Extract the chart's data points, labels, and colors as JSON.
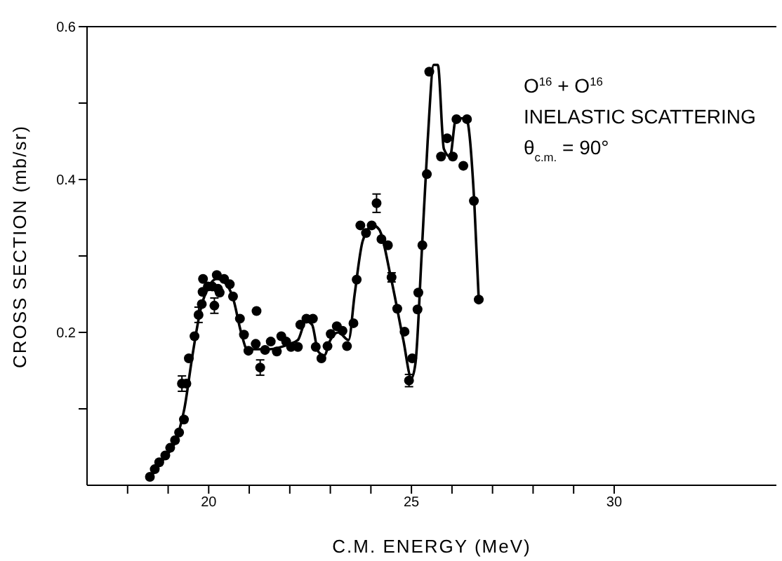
{
  "chart_data": {
    "type": "scatter",
    "xlabel": "C.M.  ENERGY   (MeV)",
    "ylabel": "CROSS  SECTION  (mb/sr)",
    "annotations": [
      "O$^{16}$ + O$^{16}$",
      "INELASTIC  SCATTERING",
      "θ$_{c.m.}$ = 90°"
    ],
    "xlim": [
      17,
      34
    ],
    "xticks": [
      {
        "value": 18,
        "label": null
      },
      {
        "value": 19,
        "label": null
      },
      20,
      {
        "value": 21,
        "label": null
      },
      {
        "value": 22,
        "label": null
      },
      {
        "value": 23,
        "label": null
      },
      {
        "value": 24,
        "label": null
      },
      25,
      {
        "value": 26,
        "label": null
      },
      {
        "value": 27,
        "label": null
      },
      {
        "value": 28,
        "label": null
      },
      {
        "value": 29,
        "label": null
      },
      30
    ],
    "ylim": [
      0,
      0.6
    ],
    "yticks": [
      {
        "value": 0.1,
        "label": null
      },
      0.2,
      {
        "value": 0.3,
        "label": null
      },
      0.4,
      {
        "value": 0.5,
        "label": null
      },
      0.6
    ],
    "marker": "circle",
    "series": [
      {
        "color": "#000000",
        "x": [
          18.55,
          18.67,
          18.78,
          18.93,
          19.05,
          19.17,
          19.27,
          19.39,
          19.34,
          19.45,
          19.51,
          19.65,
          19.75,
          19.83,
          19.85,
          19.86,
          19.98,
          20.09,
          20.14,
          20.23,
          20.27,
          20.2,
          20.38,
          20.52,
          20.6,
          20.77,
          20.87,
          20.98,
          21.16,
          21.18,
          21.27,
          21.39,
          21.53,
          21.68,
          21.79,
          21.91,
          22.03,
          22.2,
          22.26,
          22.41,
          22.57,
          22.64,
          22.78,
          22.93,
          23.01,
          23.16,
          23.3,
          23.41,
          23.57,
          23.65,
          23.74,
          23.88,
          24.02,
          24.14,
          24.26,
          24.42,
          24.51,
          24.65,
          24.83,
          24.94,
          25.02,
          25.15,
          25.17,
          25.27,
          25.38,
          25.44,
          25.73,
          25.88,
          26.02,
          26.11,
          26.28,
          26.37,
          26.54,
          26.66
        ],
        "values": [
          0.011,
          0.021,
          0.03,
          0.039,
          0.049,
          0.059,
          0.069,
          0.086,
          0.133,
          0.133,
          0.166,
          0.195,
          0.223,
          0.237,
          0.253,
          0.27,
          0.26,
          0.26,
          0.235,
          0.257,
          0.252,
          0.275,
          0.27,
          0.263,
          0.247,
          0.218,
          0.197,
          0.176,
          0.185,
          0.228,
          0.154,
          0.177,
          0.188,
          0.175,
          0.195,
          0.188,
          0.181,
          0.181,
          0.21,
          0.218,
          0.218,
          0.181,
          0.166,
          0.182,
          0.198,
          0.208,
          0.202,
          0.182,
          0.212,
          0.269,
          0.34,
          0.33,
          0.34,
          0.369,
          0.322,
          0.314,
          0.272,
          0.231,
          0.201,
          0.137,
          0.166,
          0.23,
          0.252,
          0.314,
          0.407,
          0.541,
          0.43,
          0.454,
          0.43,
          0.479,
          0.418,
          0.479,
          0.372,
          0.243
        ],
        "errors": [
          null,
          null,
          null,
          null,
          null,
          null,
          null,
          null,
          0.01,
          null,
          null,
          null,
          0.01,
          null,
          null,
          null,
          null,
          null,
          0.01,
          null,
          null,
          null,
          null,
          null,
          null,
          null,
          null,
          null,
          null,
          null,
          0.01,
          null,
          null,
          null,
          null,
          null,
          null,
          null,
          null,
          null,
          null,
          null,
          null,
          null,
          null,
          null,
          null,
          null,
          null,
          null,
          null,
          null,
          null,
          0.012,
          null,
          null,
          0.006,
          null,
          null,
          0.008,
          null,
          null,
          null,
          null,
          null,
          null,
          null,
          null,
          null,
          null,
          null,
          null,
          null,
          null
        ]
      },
      {
        "type": "line",
        "marker": "none",
        "color": "#000000",
        "x": [
          18.55,
          18.9,
          19.2,
          19.4,
          19.6,
          19.8,
          20.0,
          20.2,
          20.4,
          20.6,
          20.8,
          20.95,
          21.5,
          22.0,
          22.2,
          22.4,
          22.55,
          22.7,
          22.85,
          23.0,
          23.2,
          23.45,
          23.6,
          23.8,
          24.05,
          24.2,
          24.5,
          24.8,
          25.0,
          25.1,
          25.25,
          25.4,
          25.55,
          25.65,
          25.8,
          25.95,
          26.1,
          26.35,
          26.55,
          26.66
        ],
        "values": [
          0.01,
          0.035,
          0.06,
          0.1,
          0.17,
          0.23,
          0.26,
          0.27,
          0.265,
          0.245,
          0.2,
          0.178,
          0.178,
          0.185,
          0.19,
          0.215,
          0.21,
          0.175,
          0.17,
          0.19,
          0.2,
          0.19,
          0.25,
          0.32,
          0.34,
          0.335,
          0.27,
          0.19,
          0.14,
          0.16,
          0.3,
          0.45,
          0.55,
          0.55,
          0.44,
          0.43,
          0.48,
          0.48,
          0.37,
          0.243
        ]
      }
    ]
  }
}
